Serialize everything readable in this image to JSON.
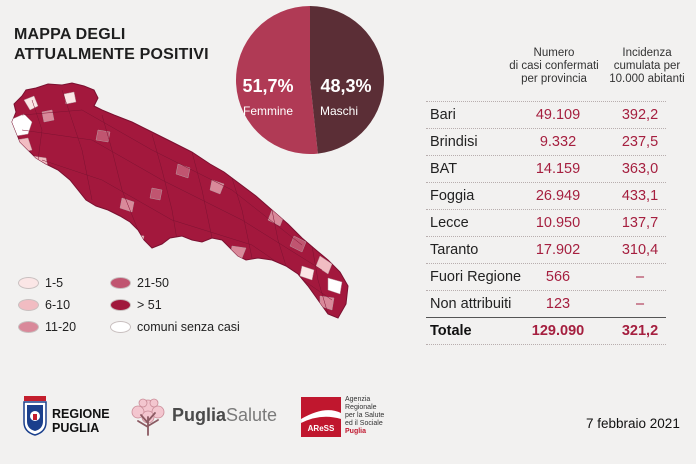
{
  "title": {
    "line1": "MAPPA DEGLI",
    "line2": "ATTUALMENTE POSITIVI"
  },
  "gender": {
    "female_pct": "51,7%",
    "female_label": "Femmine",
    "female_value": 51.7,
    "male_pct": "48,3%",
    "male_label": "Maschi",
    "male_value": 48.3,
    "colors": {
      "female": "#b03a55",
      "male": "#5b2e36"
    }
  },
  "table": {
    "col_cases": [
      "Numero",
      "di casi confermati",
      "per provincia"
    ],
    "col_incidence": [
      "Incidenza",
      "cumulata per",
      "10.000 abitanti"
    ],
    "rows": [
      {
        "name": "Bari",
        "cases": "49.109",
        "incidence": "392,2"
      },
      {
        "name": "Brindisi",
        "cases": "9.332",
        "incidence": "237,5"
      },
      {
        "name": "BAT",
        "cases": "14.159",
        "incidence": "363,0"
      },
      {
        "name": "Foggia",
        "cases": "26.949",
        "incidence": "433,1"
      },
      {
        "name": "Lecce",
        "cases": "10.950",
        "incidence": "137,7"
      },
      {
        "name": "Taranto",
        "cases": "17.902",
        "incidence": "310,4"
      },
      {
        "name": "Fuori Regione",
        "cases": "566",
        "incidence": "–"
      },
      {
        "name": "Non attribuiti",
        "cases": "123",
        "incidence": "–"
      }
    ],
    "total": {
      "name": "Totale",
      "cases": "129.090",
      "incidence": "321,2"
    },
    "value_color": "#a51f3f"
  },
  "legend": {
    "items": [
      {
        "label": "1-5",
        "color": "#fbe6e6"
      },
      {
        "label": "6-10",
        "color": "#f1bcc2"
      },
      {
        "label": "11-20",
        "color": "#d9899a"
      },
      {
        "label": "21-50",
        "color": "#c05570"
      },
      {
        "label": "> 51",
        "color": "#a0183c"
      },
      {
        "label": "comuni senza casi",
        "color": "#ffffff"
      }
    ]
  },
  "footer": {
    "regione_line1": "REGIONE",
    "regione_line2": "PUGLIA",
    "puglia_salute_part1": "Puglia",
    "puglia_salute_part2": "Salute",
    "aress_logo_text": "AReSS",
    "aress_lines": [
      "Agenzia",
      "Regionale",
      "per la Salute",
      "ed il Sociale"
    ],
    "aress_puglia": "Puglia",
    "date": "7 febbraio 2021"
  },
  "icons": {
    "regione": "coat-of-arms-icon",
    "puglia_salute": "tree-icon",
    "aress": "aress-logo-icon"
  }
}
